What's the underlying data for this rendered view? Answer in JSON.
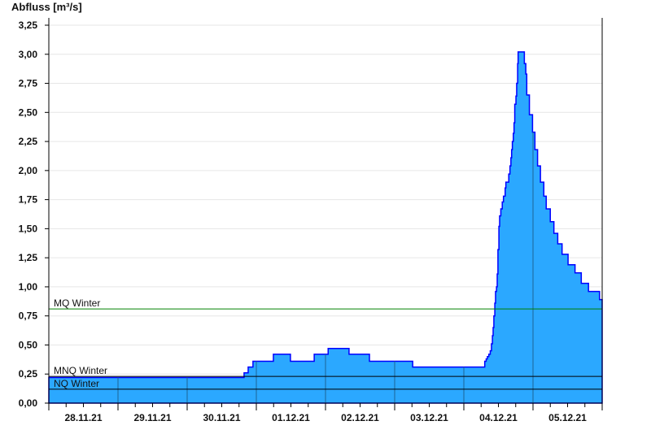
{
  "chart_data": {
    "type": "area",
    "title": "",
    "ylabel": "Abfluss [m³/s]",
    "xlabel": "",
    "ylim": [
      0,
      3.25
    ],
    "xlim": [
      "28.11.21 00:00",
      "06.12.21 00:00"
    ],
    "yticks": [
      "0,00",
      "0,25",
      "0,50",
      "0,75",
      "1,00",
      "1,25",
      "1,50",
      "1,75",
      "2,00",
      "2,25",
      "2,50",
      "2,75",
      "3,00",
      "3,25"
    ],
    "xtick_labels": [
      "28.11.21",
      "29.11.21",
      "30.11.21",
      "01.12.21",
      "02.12.21",
      "03.12.21",
      "04.12.21",
      "05.12.21"
    ],
    "grid": true,
    "step": true,
    "colors": {
      "fill": "#2ba8ff",
      "line": "#0000ff",
      "day_lines": "#1e6496",
      "mq": "#008000",
      "mnq": "#000000",
      "nq": "#000000",
      "grid": "#e6e6e6"
    },
    "reference_lines": [
      {
        "label": "MQ Winter",
        "value": 0.81
      },
      {
        "label": "MNQ Winter",
        "value": 0.23
      },
      {
        "label": "NQ Winter",
        "value": 0.12
      }
    ],
    "series": [
      {
        "points": [
          [
            "28.11.21 00:00",
            0.22
          ],
          [
            "30.11.21 19:45",
            0.26
          ],
          [
            "30.11.21 21:10",
            0.31
          ],
          [
            "30.11.21 22:50",
            0.36
          ],
          [
            "01.12.21 05:55",
            0.42
          ],
          [
            "01.12.21 11:50",
            0.36
          ],
          [
            "01.12.21 20:05",
            0.42
          ],
          [
            "02.12.21 00:55",
            0.47
          ],
          [
            "02.12.21 08:10",
            0.42
          ],
          [
            "02.12.21 15:15",
            0.36
          ],
          [
            "03.12.21 06:15",
            0.31
          ],
          [
            "04.12.21 07:15",
            0.36
          ],
          [
            "04.12.21 07:45",
            0.38
          ],
          [
            "04.12.21 08:10",
            0.4
          ],
          [
            "04.12.21 08:40",
            0.42
          ],
          [
            "04.12.21 09:10",
            0.45
          ],
          [
            "04.12.21 09:35",
            0.51
          ],
          [
            "04.12.21 09:55",
            0.58
          ],
          [
            "04.12.21 10:10",
            0.65
          ],
          [
            "04.12.21 10:25",
            0.75
          ],
          [
            "04.12.21 10:45",
            0.86
          ],
          [
            "04.12.21 11:00",
            0.96
          ],
          [
            "04.12.21 11:20",
            1.0
          ],
          [
            "04.12.21 11:35",
            1.11
          ],
          [
            "04.12.21 11:50",
            1.32
          ],
          [
            "04.12.21 12:10",
            1.52
          ],
          [
            "04.12.21 12:25",
            1.61
          ],
          [
            "04.12.21 12:50",
            1.67
          ],
          [
            "04.12.21 13:20",
            1.73
          ],
          [
            "04.12.21 13:45",
            1.78
          ],
          [
            "04.12.21 14:20",
            1.85
          ],
          [
            "04.12.21 14:35",
            1.9
          ],
          [
            "04.12.21 15:35",
            1.97
          ],
          [
            "04.12.21 16:00",
            2.04
          ],
          [
            "04.12.21 16:20",
            2.11
          ],
          [
            "04.12.21 16:35",
            2.18
          ],
          [
            "04.12.21 16:50",
            2.25
          ],
          [
            "04.12.21 17:10",
            2.32
          ],
          [
            "04.12.21 17:25",
            2.41
          ],
          [
            "04.12.21 17:40",
            2.57
          ],
          [
            "04.12.21 18:05",
            2.64
          ],
          [
            "04.12.21 18:20",
            2.75
          ],
          [
            "04.12.21 18:40",
            2.92
          ],
          [
            "04.12.21 18:50",
            3.02
          ],
          [
            "04.12.21 21:00",
            2.92
          ],
          [
            "04.12.21 21:30",
            2.83
          ],
          [
            "04.12.21 21:50",
            2.65
          ],
          [
            "04.12.21 22:45",
            2.48
          ],
          [
            "04.12.21 23:50",
            2.33
          ],
          [
            "05.12.21 00:40",
            2.18
          ],
          [
            "05.12.21 01:35",
            2.04
          ],
          [
            "05.12.21 02:35",
            1.9
          ],
          [
            "05.12.21 03:45",
            1.78
          ],
          [
            "05.12.21 04:35",
            1.67
          ],
          [
            "05.12.21 06:00",
            1.56
          ],
          [
            "05.12.21 07:15",
            1.46
          ],
          [
            "05.12.21 08:35",
            1.37
          ],
          [
            "05.12.21 10:05",
            1.28
          ],
          [
            "05.12.21 12:10",
            1.19
          ],
          [
            "05.12.21 14:35",
            1.12
          ],
          [
            "05.12.21 16:45",
            1.03
          ],
          [
            "05.12.21 19:15",
            0.96
          ],
          [
            "05.12.21 23:05",
            0.89
          ],
          [
            "06.12.21 00:00",
            0.89
          ]
        ]
      }
    ]
  }
}
